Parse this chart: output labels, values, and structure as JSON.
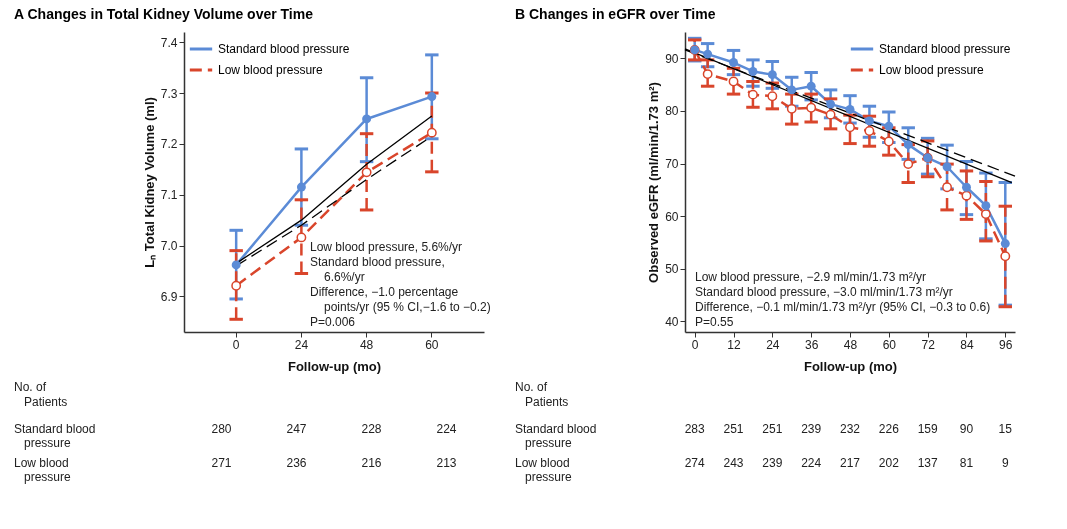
{
  "chart_data": [
    {
      "type": "line",
      "title": "A  Changes in Total Kidney Volume over Time",
      "xlabel": "Follow-up (mo)",
      "ylabel": "Lₙ Total Kidney Volume (ml)",
      "categories": [
        "0",
        "24",
        "48",
        "60"
      ],
      "ylim": [
        6.83,
        7.42
      ],
      "yticks": [
        6.9,
        {
          "value": 7,
          "label": "7.0"
        },
        7.1,
        7.2,
        7.3,
        7.4
      ],
      "legend": "top left",
      "marker": "circle",
      "series": [
        {
          "name": "Standard blood pressure",
          "color": "#5b8bd6",
          "line_style": "solid",
          "values": [
            6.962,
            7.115,
            7.249,
            7.293
          ],
          "errors": [
            [
              6.895,
              7.03
            ],
            [
              7.04,
              7.19
            ],
            [
              7.165,
              7.33
            ],
            [
              7.21,
              7.375
            ]
          ]
        },
        {
          "name": "Low blood pressure",
          "color": "#d9452b",
          "line_style": "dashed",
          "values": [
            6.921,
            7.016,
            7.144,
            7.222
          ],
          "errors": [
            [
              6.855,
              6.99
            ],
            [
              6.945,
              7.09
            ],
            [
              7.07,
              7.22
            ],
            [
              7.145,
              7.3
            ]
          ]
        },
        {
          "color": "#000000",
          "line_style": "solid",
          "marker": "none",
          "values": [
            6.965,
            7.05,
            7.16,
            7.255
          ]
        },
        {
          "color": "#000000",
          "line_style": "dashed",
          "marker": "none",
          "values": [
            6.96,
            7.04,
            7.13,
            7.215
          ]
        }
      ],
      "annotations": [
        "Low blood pressure, 5.6%/yr",
        "Standard blood pressure,\n6.6%/yr",
        "Difference, −1.0 percentage\npoints/yr (95 % CI,−1.6 to −0.2)",
        "P=0.006",
        "No. of\nPatients",
        "280",
        "247",
        "228",
        "224",
        "271",
        "236",
        "216",
        "213"
      ]
    },
    {
      "type": "line",
      "title": "B  Changes in eGFR over Time",
      "xlabel": "Follow-up (mo)",
      "ylabel": "Observed eGFR (ml/min/1.73 m²)",
      "xlim": [
        -3,
        99
      ],
      "xticks": [
        0,
        12,
        24,
        36,
        48,
        60,
        72,
        84,
        96
      ],
      "ylim": [
        38,
        95
      ],
      "yticks": [
        40,
        50,
        60,
        70,
        80,
        90
      ],
      "legend": "top right",
      "marker": "circle",
      "x": [
        0,
        4,
        12,
        18,
        24,
        30,
        36,
        42,
        48,
        54,
        60,
        66,
        72,
        78,
        84,
        90,
        96
      ],
      "series": [
        {
          "name": "Standard blood pressure",
          "color": "#5b8bd6",
          "line_style": "solid",
          "values": [
            91.6,
            90.8,
            89.2,
            87.5,
            86.9,
            84.0,
            84.7,
            81.3,
            80.3,
            78.1,
            77.1,
            73.6,
            71.1,
            69.4,
            65.5,
            62.0,
            54.8
          ],
          "errors": [
            [
              89.5,
              93.8
            ],
            [
              88.4,
              92.8
            ],
            [
              86.9,
              91.5
            ],
            [
              84.7,
              89.7
            ],
            [
              84.3,
              89.4
            ],
            [
              80.9,
              86.4
            ],
            [
              82.1,
              87.3
            ],
            [
              78.7,
              84.0
            ],
            [
              77.7,
              82.9
            ],
            [
              75.0,
              80.9
            ],
            [
              74.0,
              79.8
            ],
            [
              70.8,
              76.8
            ],
            [
              68.0,
              74.8
            ],
            [
              65.2,
              73.5
            ],
            [
              60.3,
              70.4
            ],
            [
              55.7,
              68.2
            ],
            [
              43.1,
              66.4
            ]
          ]
        },
        {
          "name": "Low blood pressure",
          "color": "#d9452b",
          "line_style": "dashed",
          "values": [
            91.6,
            87.0,
            85.6,
            83.1,
            82.8,
            80.4,
            80.6,
            79.3,
            76.9,
            76.2,
            74.2,
            69.9,
            71.1,
            65.5,
            63.9,
            60.4,
            52.4
          ],
          "errors": [
            [
              89.7,
              93.5
            ],
            [
              84.7,
              89.7
            ],
            [
              83.2,
              88.1
            ],
            [
              80.7,
              85.6
            ],
            [
              80.4,
              85.3
            ],
            [
              77.5,
              83.2
            ],
            [
              77.9,
              83.2
            ],
            [
              76.6,
              82.3
            ],
            [
              73.8,
              79.2
            ],
            [
              73.3,
              79.0
            ],
            [
              71.6,
              76.8
            ],
            [
              66.4,
              73.6
            ],
            [
              67.5,
              74.3
            ],
            [
              61.2,
              69.9
            ],
            [
              59.4,
              68.6
            ],
            [
              55.3,
              66.6
            ],
            [
              42.8,
              61.9
            ]
          ]
        },
        {
          "color": "#000000",
          "line_style": "solid",
          "marker": "none",
          "x": [
            -3,
            98
          ],
          "values": [
            91.8,
            66.4
          ]
        },
        {
          "color": "#000000",
          "line_style": "dashed",
          "marker": "none",
          "x": [
            -3,
            99
          ],
          "values": [
            91.6,
            67.6
          ]
        }
      ],
      "annotations": [
        "Low blood pressure, −2.9 ml/min/1.73 m²/yr",
        "Standard blood pressure, −3.0 ml/min/1.73 m²/yr",
        "Difference,  −0.1 ml/min/1.73 m²/yr (95% CI, −0.3 to 0.6)",
        "P=0.55",
        "No. of\nPatients",
        "283",
        "251",
        "251",
        "239",
        "232",
        "226",
        "159",
        "90",
        "15",
        "274",
        "243",
        "239",
        "224",
        "217",
        "202",
        "137",
        "81",
        "9"
      ]
    }
  ]
}
